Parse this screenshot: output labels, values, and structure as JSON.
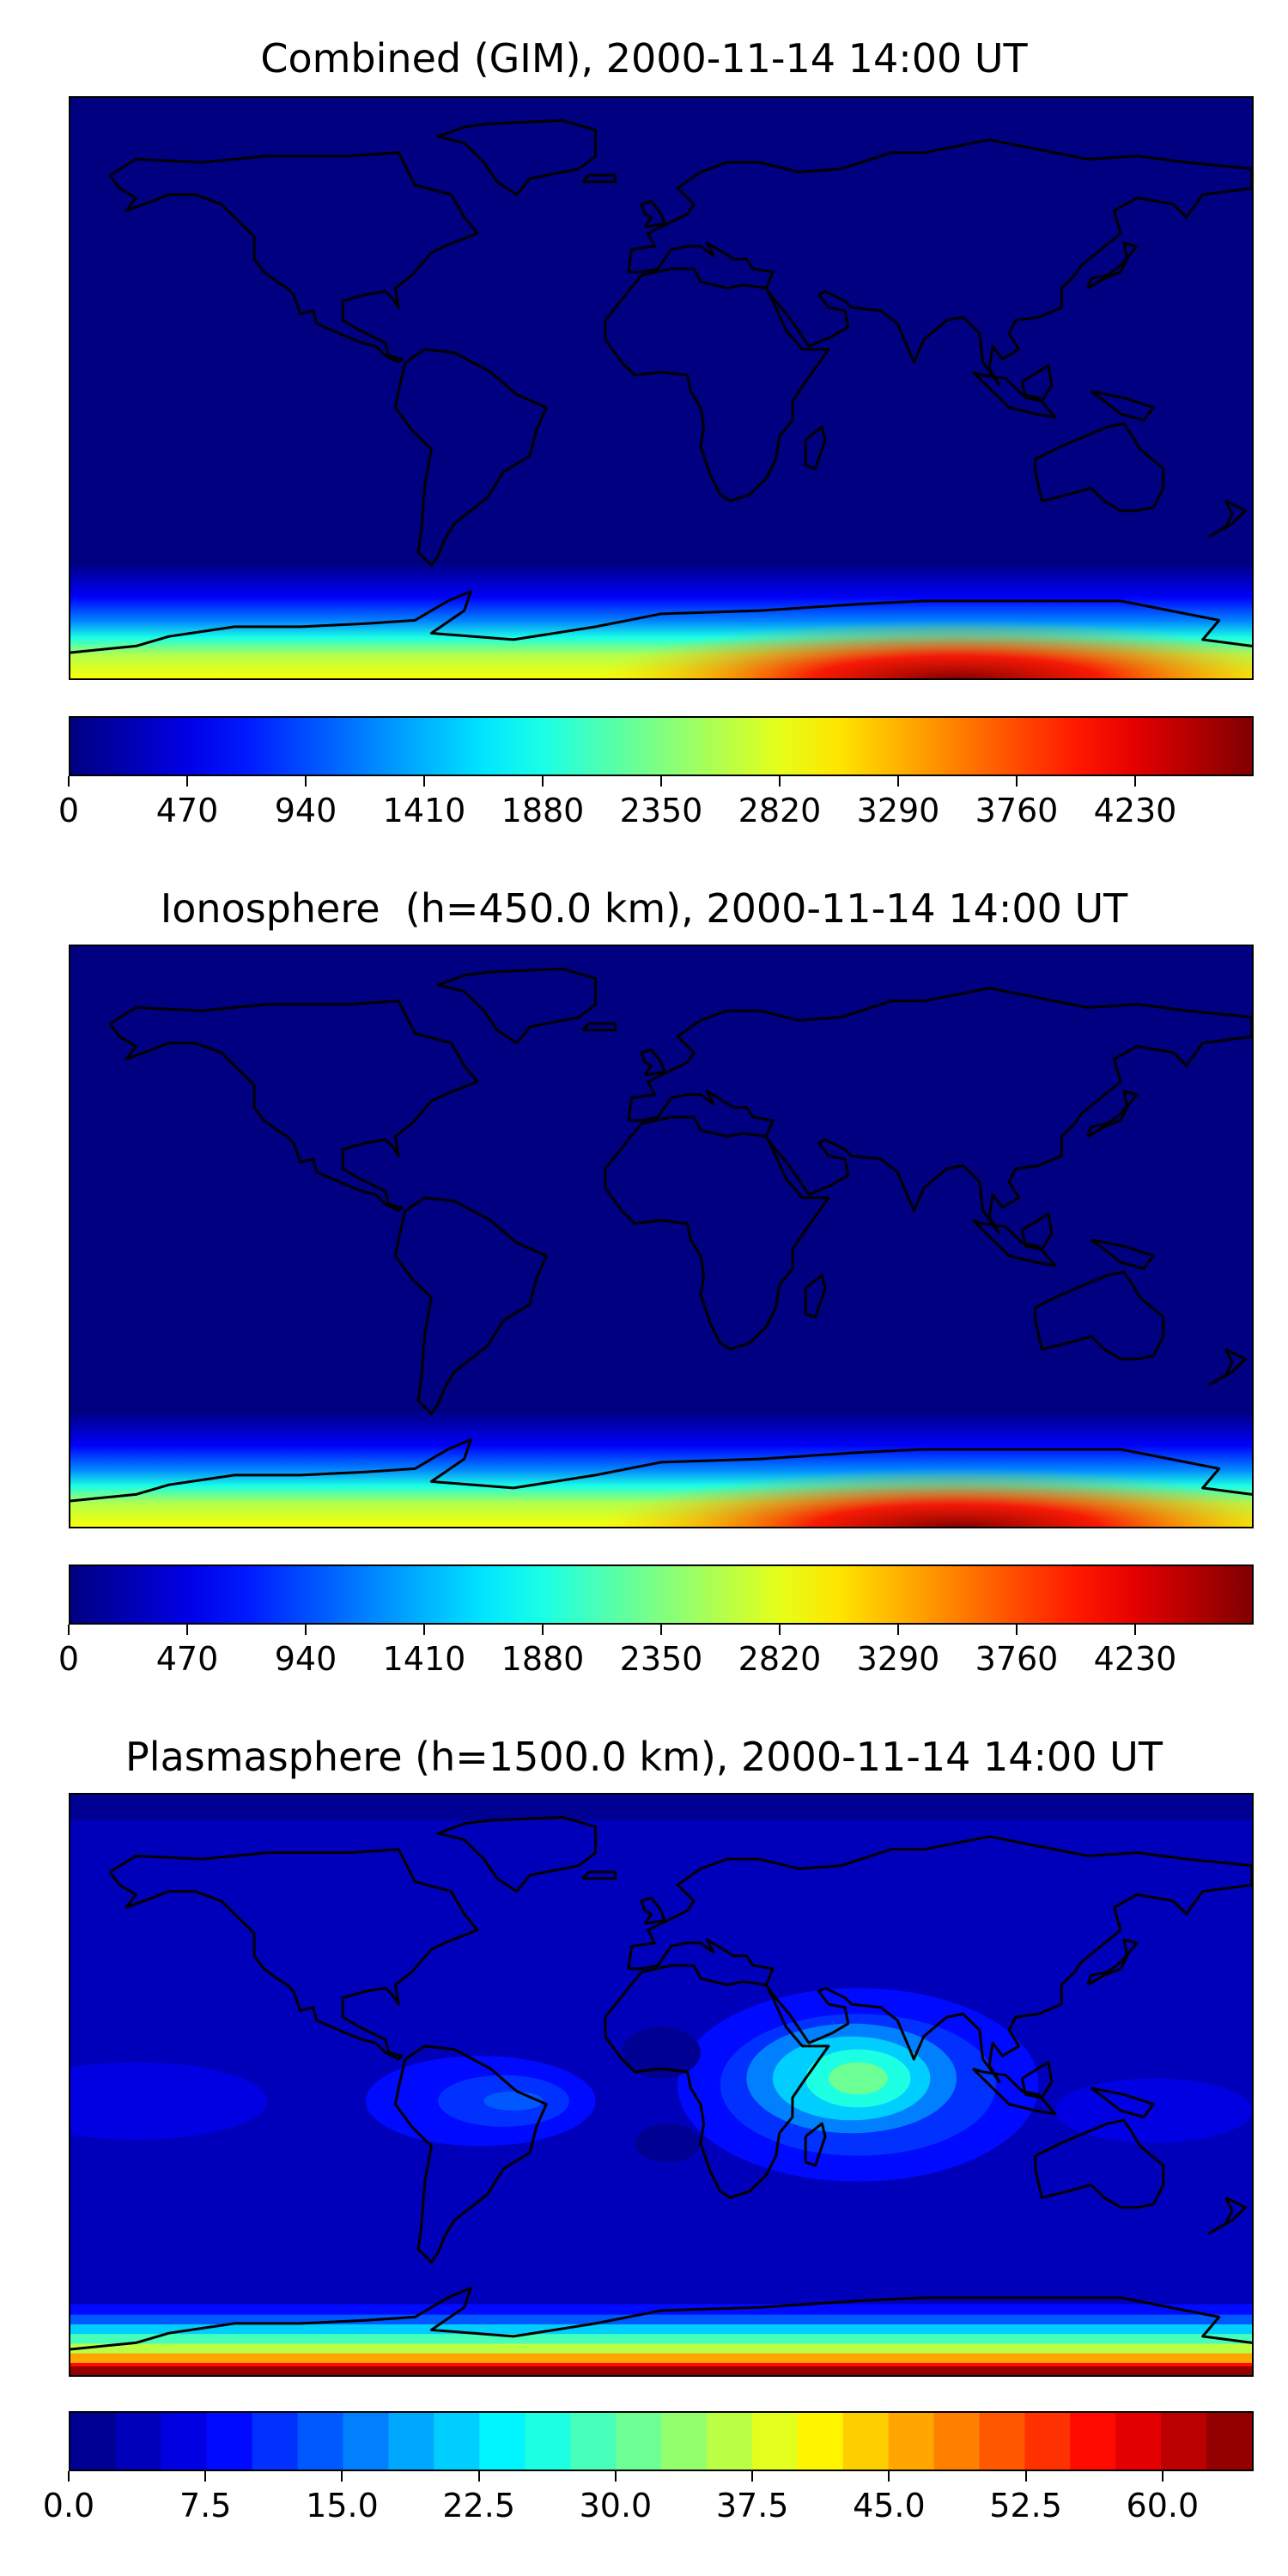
{
  "chart_data": [
    {
      "type": "heatmap",
      "title": "Combined (GIM), 2000-11-14 14:00 UT",
      "colormap": "jet",
      "colorbar": {
        "ticks": [
          "0",
          "470",
          "940",
          "1410",
          "1880",
          "2350",
          "2820",
          "3290",
          "3760",
          "4230"
        ],
        "tick_values": [
          0,
          470,
          940,
          1410,
          1880,
          2350,
          2820,
          3290,
          3760,
          4230
        ],
        "vmin": 0,
        "vmax": 4700,
        "orientation": "horizontal",
        "continuous": true
      },
      "xlim": [
        -180,
        180
      ],
      "ylim": [
        -90,
        90
      ],
      "description_values": {
        "peak_region_lon": 90,
        "peak_region_lat": -88,
        "peak_value": 4700
      }
    },
    {
      "type": "heatmap",
      "title": "Ionosphere  (h=450.0 km), 2000-11-14 14:00 UT",
      "colormap": "jet",
      "colorbar": {
        "ticks": [
          "0",
          "470",
          "940",
          "1410",
          "1880",
          "2350",
          "2820",
          "3290",
          "3760",
          "4230"
        ],
        "tick_values": [
          0,
          470,
          940,
          1410,
          1880,
          2350,
          2820,
          3290,
          3760,
          4230
        ],
        "vmin": 0,
        "vmax": 4700,
        "orientation": "horizontal",
        "continuous": true
      },
      "xlim": [
        -180,
        180
      ],
      "ylim": [
        -90,
        90
      ],
      "description_values": {
        "peak_region_lon": 90,
        "peak_region_lat": -88,
        "peak_value": 4700
      }
    },
    {
      "type": "heatmap",
      "title": "Plasmasphere (h=1500.0 km), 2000-11-14 14:00 UT",
      "colormap": "jet",
      "colorbar": {
        "ticks": [
          "0.0",
          "7.5",
          "15.0",
          "22.5",
          "30.0",
          "37.5",
          "45.0",
          "52.5",
          "60.0"
        ],
        "tick_values": [
          0,
          7.5,
          15,
          22.5,
          30,
          37.5,
          45,
          52.5,
          60
        ],
        "vmin": 0,
        "vmax": 65,
        "levels": 26,
        "orientation": "horizontal",
        "continuous": false
      },
      "xlim": [
        -180,
        180
      ],
      "ylim": [
        -90,
        90
      ],
      "description_values": {
        "peak_value": 65,
        "indian_ocean_max": 30
      }
    }
  ],
  "colors": {
    "jet": [
      "#00007f",
      "#0000ff",
      "#007fff",
      "#00ffff",
      "#7fff7f",
      "#ffff00",
      "#ff7f00",
      "#ff0000",
      "#7f0000"
    ]
  }
}
